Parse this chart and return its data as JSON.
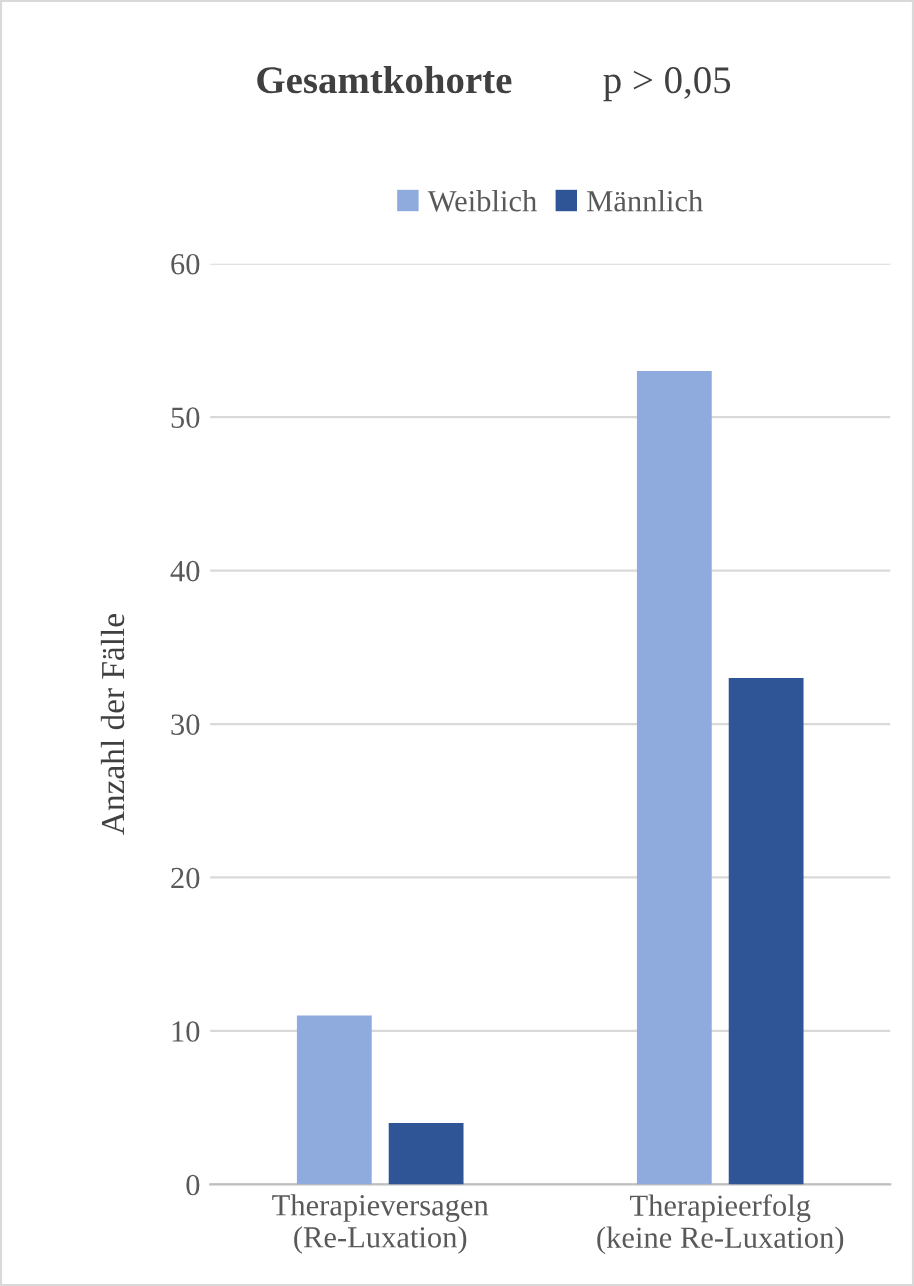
{
  "chart_data": {
    "type": "bar",
    "title": "Gesamtkohorte",
    "annotations": [
      "p > 0,05"
    ],
    "ylabel": "Anzahl der Fälle",
    "categories": [
      "Therapieversagen\n(Re-Luxation)",
      "Therapieerfolg\n(keine Re-Luxation)"
    ],
    "series": [
      {
        "name": "Weiblich",
        "color": "#8faadc",
        "values": [
          11,
          53
        ]
      },
      {
        "name": "Männlich",
        "color": "#2f5597",
        "values": [
          4,
          33
        ]
      }
    ],
    "ylim": [
      0,
      60
    ],
    "yticks": [
      0,
      10,
      20,
      30,
      40,
      50,
      60
    ],
    "grid": "y",
    "legend": "top"
  }
}
